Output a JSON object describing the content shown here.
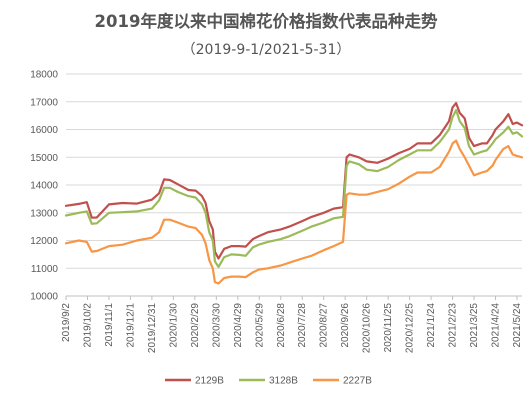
{
  "chart_data": {
    "type": "line",
    "title": "2019年度以来中国棉花价格指数代表品种走势",
    "subtitle": "（2019-9-1/2021-5-31）",
    "xlabel": "",
    "ylabel": "",
    "ylim": [
      10000,
      18000
    ],
    "yticks": [
      "10000",
      "11000",
      "12000",
      "13000",
      "14000",
      "15000",
      "16000",
      "17000",
      "18000"
    ],
    "xticks": [
      "2019/9/2",
      "2019/10/2",
      "2019/11/1",
      "2019/12/1",
      "2019/12/31",
      "2020/1/30",
      "2020/2/29",
      "2020/3/30",
      "2020/4/29",
      "2020/5/29",
      "2020/6/28",
      "2020/7/28",
      "2020/8/27",
      "2020/9/26",
      "2020/10/26",
      "2020/11/25",
      "2020/12/25",
      "2021/1/24",
      "2021/2/23",
      "2021/3/25",
      "2021/4/24",
      "2021/5/24"
    ],
    "x_range": [
      "2019-09-02",
      "2021-05-31"
    ],
    "grid": "horizontal",
    "legend": "bottom",
    "series": [
      {
        "name": "2129B",
        "color": "#c0504d",
        "points": [
          [
            "2019-09-02",
            13250
          ],
          [
            "2019-09-20",
            13320
          ],
          [
            "2019-10-01",
            13380
          ],
          [
            "2019-10-08",
            12820
          ],
          [
            "2019-10-15",
            12830
          ],
          [
            "2019-11-01",
            13300
          ],
          [
            "2019-11-20",
            13350
          ],
          [
            "2019-12-10",
            13330
          ],
          [
            "2019-12-31",
            13470
          ],
          [
            "2020-01-10",
            13700
          ],
          [
            "2020-01-17",
            14200
          ],
          [
            "2020-01-25",
            14180
          ],
          [
            "2020-02-05",
            14030
          ],
          [
            "2020-02-20",
            13820
          ],
          [
            "2020-03-01",
            13800
          ],
          [
            "2020-03-10",
            13600
          ],
          [
            "2020-03-15",
            13350
          ],
          [
            "2020-03-20",
            12700
          ],
          [
            "2020-03-25",
            12400
          ],
          [
            "2020-03-28",
            11600
          ],
          [
            "2020-04-02",
            11350
          ],
          [
            "2020-04-10",
            11700
          ],
          [
            "2020-04-20",
            11800
          ],
          [
            "2020-05-01",
            11800
          ],
          [
            "2020-05-10",
            11780
          ],
          [
            "2020-05-20",
            12050
          ],
          [
            "2020-05-28",
            12150
          ],
          [
            "2020-06-10",
            12300
          ],
          [
            "2020-06-28",
            12400
          ],
          [
            "2020-07-10",
            12500
          ],
          [
            "2020-07-28",
            12700
          ],
          [
            "2020-08-10",
            12850
          ],
          [
            "2020-08-27",
            13000
          ],
          [
            "2020-09-10",
            13150
          ],
          [
            "2020-09-23",
            13200
          ],
          [
            "2020-09-28",
            15000
          ],
          [
            "2020-10-02",
            15100
          ],
          [
            "2020-10-15",
            15000
          ],
          [
            "2020-10-26",
            14850
          ],
          [
            "2020-11-10",
            14800
          ],
          [
            "2020-11-25",
            14950
          ],
          [
            "2020-12-10",
            15150
          ],
          [
            "2020-12-25",
            15300
          ],
          [
            "2021-01-05",
            15500
          ],
          [
            "2021-01-24",
            15500
          ],
          [
            "2021-02-05",
            15800
          ],
          [
            "2021-02-18",
            16300
          ],
          [
            "2021-02-23",
            16800
          ],
          [
            "2021-02-28",
            16950
          ],
          [
            "2021-03-05",
            16600
          ],
          [
            "2021-03-12",
            16400
          ],
          [
            "2021-03-18",
            15700
          ],
          [
            "2021-03-25",
            15400
          ],
          [
            "2021-04-05",
            15500
          ],
          [
            "2021-04-12",
            15500
          ],
          [
            "2021-04-20",
            15800
          ],
          [
            "2021-04-24",
            16000
          ],
          [
            "2021-05-05",
            16300
          ],
          [
            "2021-05-12",
            16550
          ],
          [
            "2021-05-18",
            16200
          ],
          [
            "2021-05-24",
            16250
          ],
          [
            "2021-05-31",
            16150
          ]
        ]
      },
      {
        "name": "3128B",
        "color": "#9bbb59",
        "points": [
          [
            "2019-09-02",
            12900
          ],
          [
            "2019-09-20",
            13000
          ],
          [
            "2019-10-01",
            13050
          ],
          [
            "2019-10-08",
            12600
          ],
          [
            "2019-10-15",
            12620
          ],
          [
            "2019-11-01",
            13000
          ],
          [
            "2019-11-20",
            13020
          ],
          [
            "2019-12-10",
            13050
          ],
          [
            "2019-12-31",
            13150
          ],
          [
            "2020-01-10",
            13450
          ],
          [
            "2020-01-17",
            13900
          ],
          [
            "2020-01-25",
            13900
          ],
          [
            "2020-02-05",
            13750
          ],
          [
            "2020-02-20",
            13600
          ],
          [
            "2020-03-01",
            13550
          ],
          [
            "2020-03-10",
            13300
          ],
          [
            "2020-03-15",
            13000
          ],
          [
            "2020-03-20",
            12300
          ],
          [
            "2020-03-25",
            12000
          ],
          [
            "2020-03-28",
            11250
          ],
          [
            "2020-04-02",
            11050
          ],
          [
            "2020-04-10",
            11400
          ],
          [
            "2020-04-20",
            11500
          ],
          [
            "2020-05-01",
            11480
          ],
          [
            "2020-05-10",
            11450
          ],
          [
            "2020-05-20",
            11750
          ],
          [
            "2020-05-28",
            11850
          ],
          [
            "2020-06-10",
            11950
          ],
          [
            "2020-06-28",
            12050
          ],
          [
            "2020-07-10",
            12150
          ],
          [
            "2020-07-28",
            12350
          ],
          [
            "2020-08-10",
            12500
          ],
          [
            "2020-08-27",
            12650
          ],
          [
            "2020-09-10",
            12800
          ],
          [
            "2020-09-23",
            12850
          ],
          [
            "2020-09-28",
            14700
          ],
          [
            "2020-10-02",
            14850
          ],
          [
            "2020-10-15",
            14750
          ],
          [
            "2020-10-26",
            14550
          ],
          [
            "2020-11-10",
            14500
          ],
          [
            "2020-11-25",
            14650
          ],
          [
            "2020-12-10",
            14900
          ],
          [
            "2020-12-25",
            15100
          ],
          [
            "2021-01-05",
            15250
          ],
          [
            "2021-01-24",
            15250
          ],
          [
            "2021-02-05",
            15550
          ],
          [
            "2021-02-18",
            16000
          ],
          [
            "2021-02-23",
            16450
          ],
          [
            "2021-02-28",
            16700
          ],
          [
            "2021-03-05",
            16300
          ],
          [
            "2021-03-12",
            16050
          ],
          [
            "2021-03-18",
            15400
          ],
          [
            "2021-03-25",
            15100
          ],
          [
            "2021-04-05",
            15200
          ],
          [
            "2021-04-12",
            15250
          ],
          [
            "2021-04-20",
            15500
          ],
          [
            "2021-04-24",
            15650
          ],
          [
            "2021-05-05",
            15900
          ],
          [
            "2021-05-12",
            16100
          ],
          [
            "2021-05-18",
            15850
          ],
          [
            "2021-05-24",
            15900
          ],
          [
            "2021-05-31",
            15750
          ]
        ]
      },
      {
        "name": "2227B",
        "color": "#f79646",
        "points": [
          [
            "2019-09-02",
            11900
          ],
          [
            "2019-09-20",
            12000
          ],
          [
            "2019-10-01",
            11950
          ],
          [
            "2019-10-08",
            11600
          ],
          [
            "2019-10-15",
            11620
          ],
          [
            "2019-11-01",
            11800
          ],
          [
            "2019-11-20",
            11850
          ],
          [
            "2019-12-10",
            12000
          ],
          [
            "2019-12-31",
            12100
          ],
          [
            "2020-01-10",
            12300
          ],
          [
            "2020-01-17",
            12750
          ],
          [
            "2020-01-25",
            12750
          ],
          [
            "2020-02-05",
            12650
          ],
          [
            "2020-02-20",
            12500
          ],
          [
            "2020-03-01",
            12450
          ],
          [
            "2020-03-10",
            12200
          ],
          [
            "2020-03-15",
            11900
          ],
          [
            "2020-03-20",
            11300
          ],
          [
            "2020-03-25",
            11000
          ],
          [
            "2020-03-28",
            10500
          ],
          [
            "2020-04-02",
            10450
          ],
          [
            "2020-04-10",
            10650
          ],
          [
            "2020-04-20",
            10700
          ],
          [
            "2020-05-01",
            10700
          ],
          [
            "2020-05-10",
            10680
          ],
          [
            "2020-05-20",
            10850
          ],
          [
            "2020-05-28",
            10950
          ],
          [
            "2020-06-10",
            11000
          ],
          [
            "2020-06-28",
            11100
          ],
          [
            "2020-07-10",
            11200
          ],
          [
            "2020-07-28",
            11350
          ],
          [
            "2020-08-10",
            11450
          ],
          [
            "2020-08-27",
            11650
          ],
          [
            "2020-09-10",
            11800
          ],
          [
            "2020-09-23",
            11950
          ],
          [
            "2020-09-28",
            13650
          ],
          [
            "2020-10-02",
            13700
          ],
          [
            "2020-10-15",
            13650
          ],
          [
            "2020-10-26",
            13650
          ],
          [
            "2020-11-10",
            13750
          ],
          [
            "2020-11-25",
            13850
          ],
          [
            "2020-12-10",
            14050
          ],
          [
            "2020-12-25",
            14300
          ],
          [
            "2021-01-05",
            14450
          ],
          [
            "2021-01-24",
            14450
          ],
          [
            "2021-02-05",
            14650
          ],
          [
            "2021-02-18",
            15200
          ],
          [
            "2021-02-23",
            15500
          ],
          [
            "2021-02-28",
            15600
          ],
          [
            "2021-03-05",
            15300
          ],
          [
            "2021-03-12",
            15000
          ],
          [
            "2021-03-18",
            14700
          ],
          [
            "2021-03-25",
            14350
          ],
          [
            "2021-04-05",
            14450
          ],
          [
            "2021-04-12",
            14500
          ],
          [
            "2021-04-20",
            14700
          ],
          [
            "2021-04-24",
            14900
          ],
          [
            "2021-05-05",
            15300
          ],
          [
            "2021-05-12",
            15400
          ],
          [
            "2021-05-18",
            15100
          ],
          [
            "2021-05-24",
            15050
          ],
          [
            "2021-05-31",
            15000
          ]
        ]
      }
    ]
  }
}
